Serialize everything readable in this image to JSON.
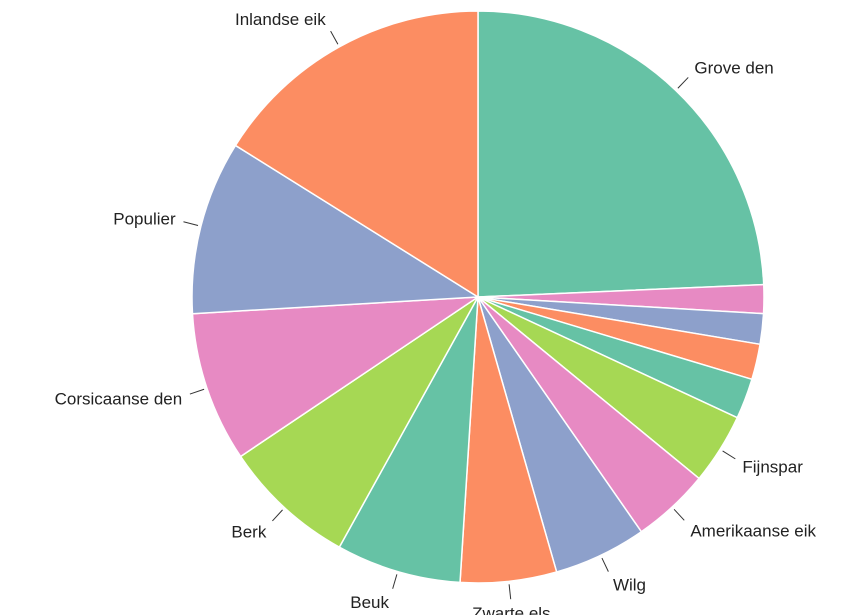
{
  "chart_data": {
    "type": "pie",
    "start_angle_deg": 90,
    "direction": "clockwise",
    "slices": [
      {
        "label": "Grove den",
        "value": 25.5,
        "color": "#66c2a5"
      },
      {
        "label": "",
        "value": 1.7,
        "color": "#e78ac3"
      },
      {
        "label": "",
        "value": 1.8,
        "color": "#8da0cb"
      },
      {
        "label": "",
        "value": 2.1,
        "color": "#fc8d62"
      },
      {
        "label": "",
        "value": 2.4,
        "color": "#66c2a5"
      },
      {
        "label": "Fijnspar",
        "value": 4.2,
        "color": "#a6d854"
      },
      {
        "label": "Amerikaanse eik",
        "value": 4.6,
        "color": "#e78ac3"
      },
      {
        "label": "Wilg",
        "value": 5.5,
        "color": "#8da0cb"
      },
      {
        "label": "Zwarte els",
        "value": 5.7,
        "color": "#fc8d62"
      },
      {
        "label": "Beuk",
        "value": 7.4,
        "color": "#66c2a5"
      },
      {
        "label": "Berk",
        "value": 7.9,
        "color": "#a6d854"
      },
      {
        "label": "Corsicaanse den",
        "value": 8.9,
        "color": "#e78ac3"
      },
      {
        "label": "Populier",
        "value": 10.3,
        "color": "#8da0cb"
      },
      {
        "label": "Inlandse eik",
        "value": 16.9,
        "color": "#fc8d62"
      }
    ]
  }
}
